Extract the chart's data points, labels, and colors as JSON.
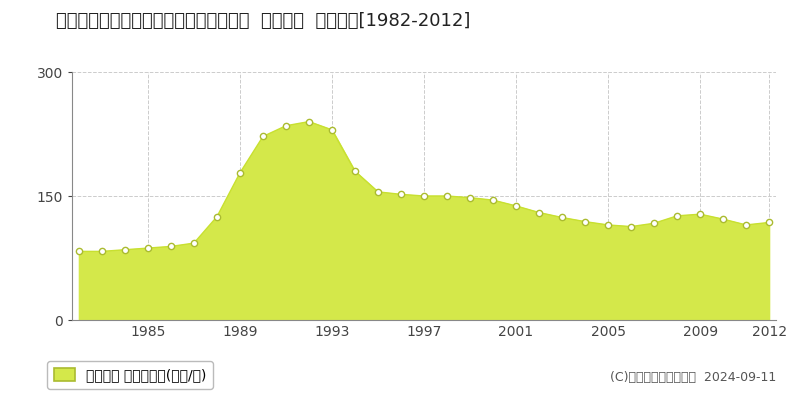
{
  "title": "東京都江戸川区平井４丁目８５６番３外  地価公示  地価推移[1982-2012]",
  "years": [
    1982,
    1983,
    1984,
    1985,
    1986,
    1987,
    1988,
    1989,
    1990,
    1991,
    1992,
    1993,
    1994,
    1995,
    1996,
    1997,
    1998,
    1999,
    2000,
    2001,
    2002,
    2003,
    2004,
    2005,
    2006,
    2007,
    2008,
    2009,
    2010,
    2011,
    2012
  ],
  "values": [
    83,
    83,
    85,
    87,
    89,
    93,
    125,
    178,
    222,
    235,
    240,
    230,
    180,
    155,
    152,
    150,
    150,
    148,
    145,
    138,
    130,
    124,
    119,
    115,
    113,
    117,
    126,
    128,
    122,
    115,
    118
  ],
  "line_color": "#c8e030",
  "fill_color": "#d4e84a",
  "fill_alpha": 1.0,
  "marker_facecolor": "#ffffff",
  "marker_edgecolor": "#aabb30",
  "ylim": [
    0,
    300
  ],
  "yticks": [
    0,
    150,
    300
  ],
  "xticks": [
    1985,
    1989,
    1993,
    1997,
    2001,
    2005,
    2009,
    2012
  ],
  "bg_color": "#ffffff",
  "grid_color": "#cccccc",
  "legend_label": "地価公示 平均嵪単価(万円/嵪)",
  "copyright_text": "(C)土地価格ドットコム  2024-09-11",
  "title_fontsize": 13,
  "axis_fontsize": 10,
  "legend_fontsize": 10,
  "copyright_fontsize": 9
}
